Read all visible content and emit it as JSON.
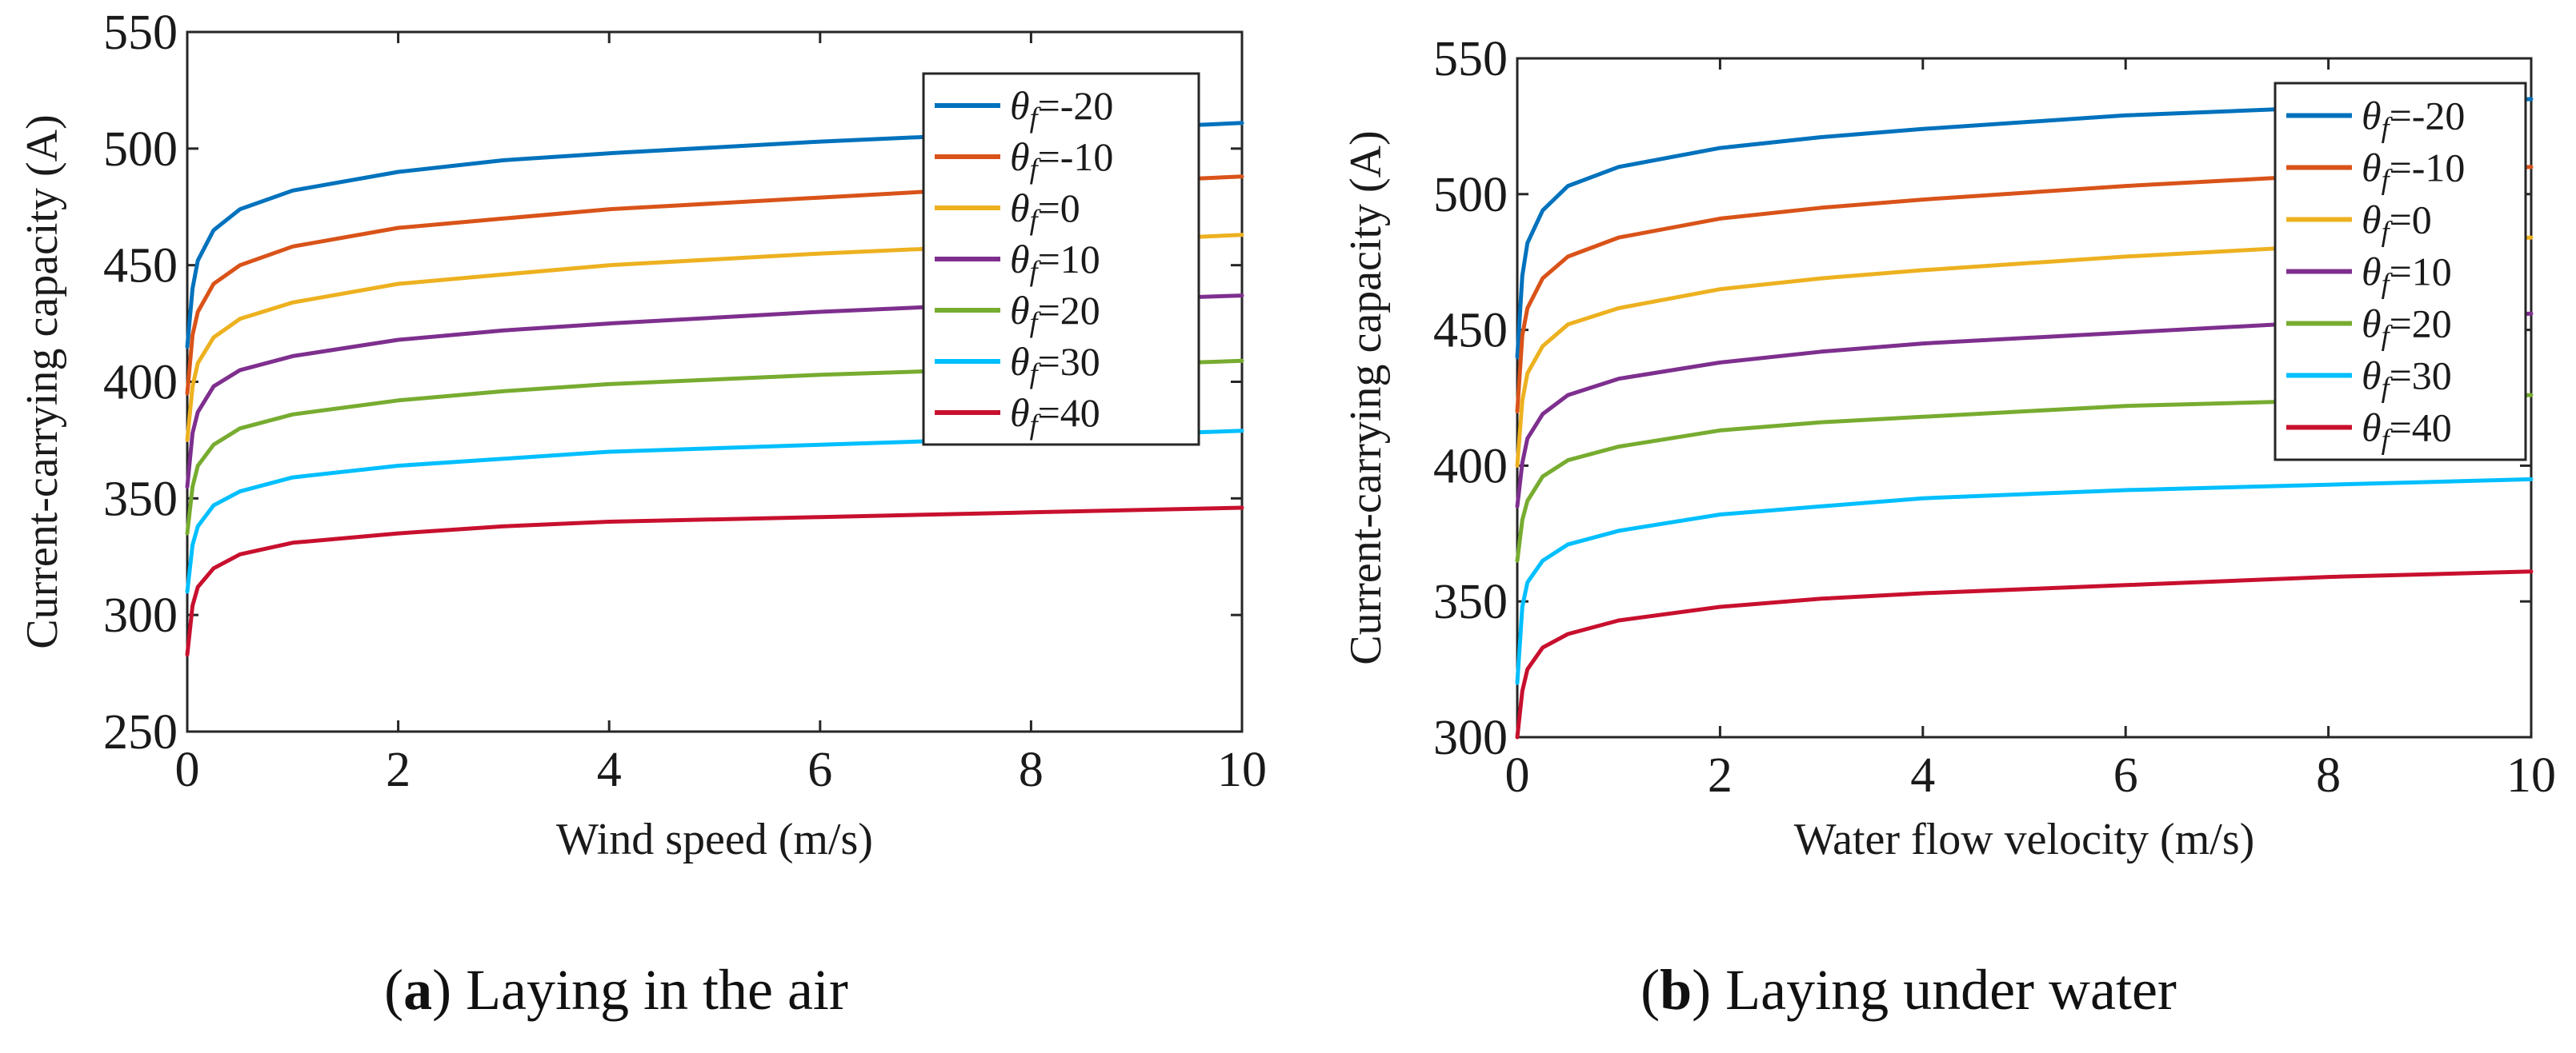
{
  "chart_data": [
    {
      "type": "line",
      "panel_letter": "a",
      "caption": "Laying in the air",
      "title": "",
      "xlabel": "Wind speed (m/s)",
      "ylabel": "Current-carrying capacity (A)",
      "xlim": [
        0,
        10
      ],
      "ylim": [
        250,
        550
      ],
      "xticks": [
        0,
        2,
        4,
        6,
        8,
        10
      ],
      "yticks": [
        250,
        300,
        350,
        400,
        450,
        500,
        550
      ],
      "grid": false,
      "legend_position": "top-right",
      "legend_symbol": "θ",
      "legend_subscript": "f",
      "series": [
        {
          "name": "=-20",
          "color": "#0072BD",
          "x": [
            0,
            0.05,
            0.1,
            0.25,
            0.5,
            1,
            2,
            3,
            4,
            6,
            8,
            10
          ],
          "values": [
            415,
            440,
            452,
            465,
            474,
            482,
            490,
            495,
            498,
            503,
            507,
            511
          ]
        },
        {
          "name": "=-10",
          "color": "#D95319",
          "x": [
            0,
            0.05,
            0.1,
            0.25,
            0.5,
            1,
            2,
            3,
            4,
            6,
            8,
            10
          ],
          "values": [
            395,
            420,
            430,
            442,
            450,
            458,
            466,
            470,
            474,
            479,
            484,
            488
          ]
        },
        {
          "name": "=0",
          "color": "#EDB120",
          "x": [
            0,
            0.05,
            0.1,
            0.25,
            0.5,
            1,
            2,
            3,
            4,
            6,
            8,
            10
          ],
          "values": [
            375,
            398,
            408,
            419,
            427,
            434,
            442,
            446,
            450,
            455,
            459,
            463
          ]
        },
        {
          "name": "=10",
          "color": "#7E2F8E",
          "x": [
            0,
            0.05,
            0.1,
            0.25,
            0.5,
            1,
            2,
            3,
            4,
            6,
            8,
            10
          ],
          "values": [
            355,
            378,
            387,
            398,
            405,
            411,
            418,
            422,
            425,
            430,
            434,
            437
          ]
        },
        {
          "name": "=20",
          "color": "#77AC30",
          "x": [
            0,
            0.05,
            0.1,
            0.25,
            0.5,
            1,
            2,
            3,
            4,
            6,
            8,
            10
          ],
          "values": [
            335,
            355,
            364,
            373,
            380,
            386,
            392,
            396,
            399,
            403,
            406,
            409
          ]
        },
        {
          "name": "=30",
          "color": "#00BFFF",
          "x": [
            0,
            0.05,
            0.1,
            0.25,
            0.5,
            1,
            2,
            3,
            4,
            6,
            8,
            10
          ],
          "values": [
            310,
            330,
            338,
            347,
            353,
            359,
            364,
            367,
            370,
            373,
            376,
            379
          ]
        },
        {
          "name": "=40",
          "color": "#C8102E",
          "x": [
            0,
            0.05,
            0.1,
            0.25,
            0.5,
            1,
            2,
            3,
            4,
            6,
            8,
            10
          ],
          "values": [
            283,
            304,
            312,
            320,
            326,
            331,
            335,
            338,
            340,
            342,
            344,
            346
          ]
        }
      ]
    },
    {
      "type": "line",
      "panel_letter": "b",
      "caption": "Laying under water",
      "title": "",
      "xlabel": "Water flow velocity (m/s)",
      "ylabel": "Current-carrying capacity (A)",
      "xlim": [
        0,
        10
      ],
      "ylim": [
        300,
        550
      ],
      "xticks": [
        0,
        2,
        4,
        6,
        8,
        10
      ],
      "yticks": [
        300,
        350,
        400,
        450,
        500,
        550
      ],
      "grid": false,
      "legend_position": "top-right",
      "legend_symbol": "θ",
      "legend_subscript": "f",
      "series": [
        {
          "name": "=-20",
          "color": "#0072BD",
          "x": [
            0,
            0.05,
            0.1,
            0.25,
            0.5,
            1,
            2,
            3,
            4,
            6,
            8,
            10
          ],
          "values": [
            440,
            470,
            482,
            494,
            503,
            510,
            517,
            521,
            524,
            529,
            532,
            535
          ]
        },
        {
          "name": "=-10",
          "color": "#D95319",
          "x": [
            0,
            0.05,
            0.1,
            0.25,
            0.5,
            1,
            2,
            3,
            4,
            6,
            8,
            10
          ],
          "values": [
            420,
            448,
            458,
            469,
            477,
            484,
            491,
            495,
            498,
            503,
            507,
            510
          ]
        },
        {
          "name": "=0",
          "color": "#EDB120",
          "x": [
            0,
            0.05,
            0.1,
            0.25,
            0.5,
            1,
            2,
            3,
            4,
            6,
            8,
            10
          ],
          "values": [
            400,
            424,
            434,
            444,
            452,
            458,
            465,
            469,
            472,
            477,
            481,
            484
          ]
        },
        {
          "name": "=10",
          "color": "#7E2F8E",
          "x": [
            0,
            0.05,
            0.1,
            0.25,
            0.5,
            1,
            2,
            3,
            4,
            6,
            8,
            10
          ],
          "values": [
            385,
            401,
            410,
            419,
            426,
            432,
            438,
            442,
            445,
            449,
            453,
            456
          ]
        },
        {
          "name": "=20",
          "color": "#77AC30",
          "x": [
            0,
            0.05,
            0.1,
            0.25,
            0.5,
            1,
            2,
            3,
            4,
            6,
            8,
            10
          ],
          "values": [
            365,
            380,
            387,
            396,
            402,
            407,
            413,
            416,
            418,
            422,
            424,
            426
          ]
        },
        {
          "name": "=30",
          "color": "#00BFFF",
          "x": [
            0,
            0.05,
            0.1,
            0.25,
            0.5,
            1,
            2,
            3,
            4,
            6,
            8,
            10
          ],
          "values": [
            320,
            348,
            357,
            365,
            371,
            376,
            382,
            385,
            388,
            391,
            393,
            395
          ]
        },
        {
          "name": "=40",
          "color": "#C8102E",
          "x": [
            0,
            0.05,
            0.1,
            0.25,
            0.5,
            1,
            2,
            3,
            4,
            6,
            8,
            10
          ],
          "values": [
            300,
            317,
            325,
            333,
            338,
            343,
            348,
            351,
            353,
            356,
            359,
            361
          ]
        }
      ]
    }
  ]
}
